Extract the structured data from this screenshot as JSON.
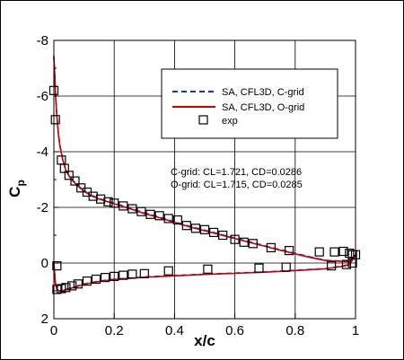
{
  "chart_data": {
    "type": "line",
    "xlabel": "x/c",
    "ylabel": "C",
    "ylabel_subscript": "p",
    "xlim": [
      0,
      1
    ],
    "ylim": [
      2,
      -8
    ],
    "y_inverted": true,
    "grid": true,
    "x_ticks": [
      0,
      0.2,
      0.4,
      0.6,
      0.8,
      1
    ],
    "x_tick_labels": [
      "0",
      "0.2",
      "0.4",
      "0.6",
      "0.8",
      "1"
    ],
    "y_ticks": [
      -8,
      -6,
      -4,
      -2,
      0,
      2
    ],
    "y_tick_labels": [
      "-8",
      "-6",
      "-4",
      "-2",
      "0",
      "2"
    ],
    "legend_position": "top-right",
    "series": [
      {
        "name": "SA, CFL3D, C-grid",
        "style": "dashed",
        "color": "#1f2bd6",
        "upper": {
          "x": [
            0.0,
            0.003,
            0.006,
            0.01,
            0.015,
            0.02,
            0.03,
            0.04,
            0.05,
            0.06,
            0.08,
            0.1,
            0.12,
            0.15,
            0.2,
            0.25,
            0.3,
            0.35,
            0.4,
            0.45,
            0.5,
            0.55,
            0.6,
            0.65,
            0.7,
            0.75,
            0.8,
            0.85,
            0.9,
            0.95,
            0.98,
            1.0
          ],
          "y": [
            -7.45,
            -6.8,
            -6.0,
            -5.3,
            -4.7,
            -4.25,
            -3.7,
            -3.35,
            -3.15,
            -3.0,
            -2.78,
            -2.6,
            -2.46,
            -2.32,
            -2.15,
            -1.98,
            -1.8,
            -1.65,
            -1.48,
            -1.32,
            -1.18,
            -1.04,
            -0.9,
            -0.76,
            -0.62,
            -0.48,
            -0.35,
            -0.22,
            -0.1,
            -0.07,
            -0.06,
            -0.3
          ]
        },
        "lower": {
          "x": [
            0.0,
            0.005,
            0.01,
            0.02,
            0.03,
            0.05,
            0.08,
            0.1,
            0.15,
            0.2,
            0.3,
            0.4,
            0.5,
            0.6,
            0.7,
            0.8,
            0.85,
            0.9,
            0.95,
            0.98,
            1.0
          ],
          "y": [
            0.0,
            0.7,
            0.95,
            1.0,
            0.98,
            0.92,
            0.82,
            0.75,
            0.65,
            0.58,
            0.5,
            0.45,
            0.4,
            0.36,
            0.32,
            0.26,
            0.23,
            0.2,
            0.12,
            0.05,
            -0.3
          ]
        }
      },
      {
        "name": "SA, CFL3D, O-grid",
        "style": "solid",
        "color": "#cc0000",
        "upper": {
          "x": [
            0.0,
            0.003,
            0.006,
            0.01,
            0.015,
            0.02,
            0.03,
            0.04,
            0.05,
            0.06,
            0.08,
            0.1,
            0.12,
            0.15,
            0.2,
            0.25,
            0.3,
            0.35,
            0.4,
            0.45,
            0.5,
            0.55,
            0.6,
            0.65,
            0.7,
            0.75,
            0.8,
            0.85,
            0.9,
            0.95,
            0.98,
            1.0
          ],
          "y": [
            -7.4,
            -6.75,
            -5.95,
            -5.25,
            -4.65,
            -4.2,
            -3.68,
            -3.33,
            -3.13,
            -2.98,
            -2.76,
            -2.58,
            -2.44,
            -2.3,
            -2.13,
            -1.96,
            -1.78,
            -1.63,
            -1.46,
            -1.3,
            -1.16,
            -1.02,
            -0.88,
            -0.74,
            -0.6,
            -0.46,
            -0.33,
            -0.2,
            -0.09,
            -0.06,
            -0.05,
            -0.3
          ]
        },
        "lower": {
          "x": [
            0.0,
            0.005,
            0.01,
            0.02,
            0.03,
            0.05,
            0.08,
            0.1,
            0.15,
            0.2,
            0.3,
            0.4,
            0.5,
            0.6,
            0.7,
            0.8,
            0.85,
            0.9,
            0.95,
            0.98,
            1.0
          ],
          "y": [
            0.0,
            0.72,
            0.96,
            1.01,
            0.99,
            0.93,
            0.83,
            0.76,
            0.66,
            0.59,
            0.51,
            0.46,
            0.41,
            0.37,
            0.33,
            0.27,
            0.24,
            0.21,
            0.13,
            0.06,
            -0.3
          ]
        }
      },
      {
        "name": "exp",
        "style": "markers",
        "marker": "square",
        "color": "#000000",
        "x": [
          0.0,
          0.005,
          0.01,
          0.025,
          0.035,
          0.05,
          0.07,
          0.09,
          0.11,
          0.13,
          0.155,
          0.18,
          0.2,
          0.23,
          0.26,
          0.29,
          0.32,
          0.35,
          0.38,
          0.41,
          0.44,
          0.47,
          0.5,
          0.53,
          0.56,
          0.6,
          0.63,
          0.66,
          0.72,
          0.78,
          0.88,
          0.93,
          0.96,
          0.98,
          0.99,
          1.0,
          0.01,
          0.025,
          0.04,
          0.06,
          0.08,
          0.11,
          0.14,
          0.17,
          0.2,
          0.23,
          0.26,
          0.3,
          0.38,
          0.51,
          0.68,
          0.77,
          0.92,
          0.97,
          0.99
        ],
        "y": [
          -6.2,
          -5.15,
          0.1,
          -3.7,
          -3.4,
          -3.15,
          -2.95,
          -2.7,
          -2.55,
          -2.4,
          -2.3,
          -2.2,
          -2.15,
          -2.05,
          -1.95,
          -1.85,
          -1.75,
          -1.7,
          -1.6,
          -1.55,
          -1.35,
          -1.25,
          -1.2,
          -1.1,
          -1.0,
          -0.85,
          -0.75,
          -0.7,
          -0.55,
          -0.45,
          -0.4,
          -0.4,
          -0.42,
          -0.35,
          -0.3,
          -0.3,
          0.95,
          0.92,
          0.88,
          0.82,
          0.75,
          0.65,
          0.58,
          0.52,
          0.48,
          0.44,
          0.4,
          0.38,
          0.28,
          0.22,
          0.18,
          0.15,
          0.1,
          0.05,
          0.0
        ]
      }
    ],
    "annotations": [
      "C-grid: CL=1.721, CD=0.0286",
      "O-grid: CL=1.715, CD=0.0285"
    ]
  }
}
